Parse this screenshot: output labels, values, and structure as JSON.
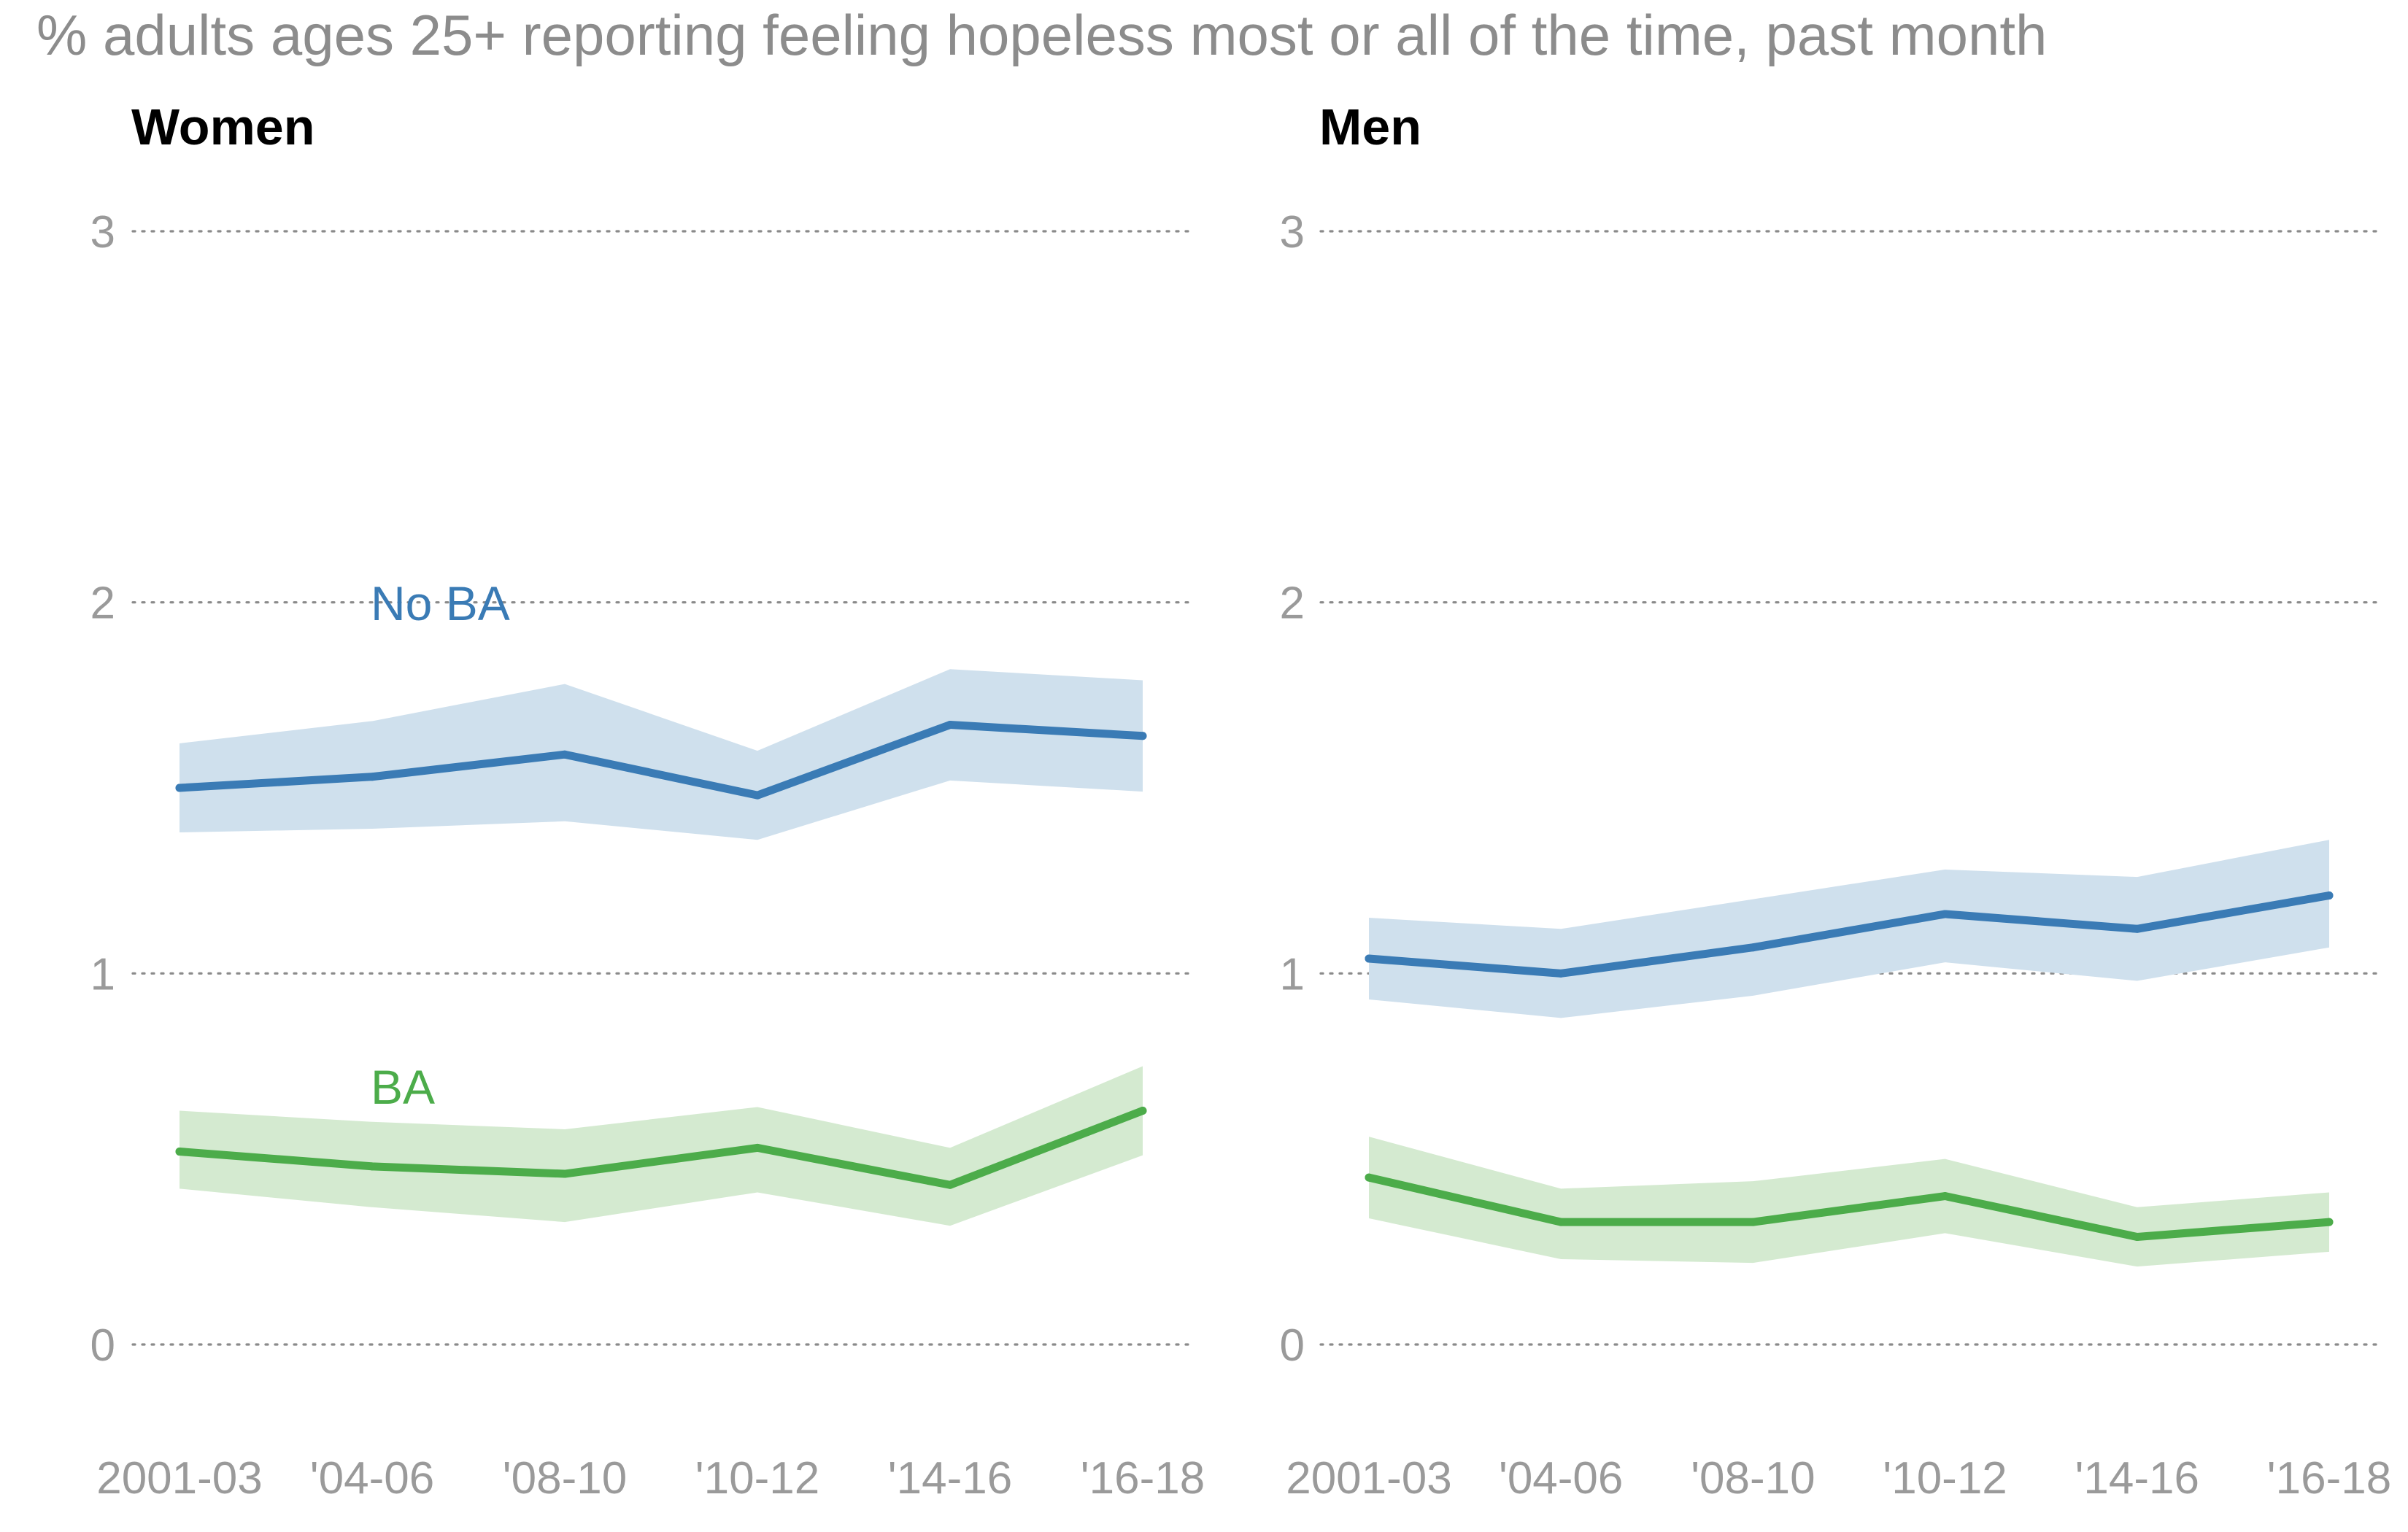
{
  "chart_data": {
    "type": "line",
    "title": "% adults ages 25+ reporting feeling hopeless most or all of the time, past month",
    "x": [
      "2001-03",
      "'04-06",
      "'08-10",
      "'10-12",
      "'14-16",
      "'16-18"
    ],
    "ylim": [
      0,
      3
    ],
    "yticks": [
      0,
      1,
      2,
      3
    ],
    "grid": true,
    "colors": {
      "no_ba_line": "#3a7bb5",
      "no_ba_band": "#cfe0ed",
      "ba_line": "#4cac4a",
      "ba_band": "#d4ead0"
    },
    "panels": [
      {
        "title": "Women",
        "series": [
          {
            "name": "No BA",
            "values": [
              1.5,
              1.53,
              1.59,
              1.48,
              1.67,
              1.64
            ],
            "lower": [
              1.38,
              1.39,
              1.41,
              1.36,
              1.52,
              1.49
            ],
            "upper": [
              1.62,
              1.68,
              1.78,
              1.6,
              1.82,
              1.79
            ]
          },
          {
            "name": "BA",
            "values": [
              0.52,
              0.48,
              0.46,
              0.53,
              0.43,
              0.63
            ],
            "lower": [
              0.42,
              0.37,
              0.33,
              0.41,
              0.32,
              0.51
            ],
            "upper": [
              0.63,
              0.6,
              0.58,
              0.64,
              0.53,
              0.75
            ]
          }
        ]
      },
      {
        "title": "Men",
        "series": [
          {
            "name": "No BA",
            "values": [
              1.04,
              1.0,
              1.07,
              1.16,
              1.12,
              1.21
            ],
            "lower": [
              0.93,
              0.88,
              0.94,
              1.03,
              0.98,
              1.07
            ],
            "upper": [
              1.15,
              1.12,
              1.2,
              1.28,
              1.26,
              1.36
            ]
          },
          {
            "name": "BA",
            "values": [
              0.45,
              0.33,
              0.33,
              0.4,
              0.29,
              0.33
            ],
            "lower": [
              0.34,
              0.23,
              0.22,
              0.3,
              0.21,
              0.25
            ],
            "upper": [
              0.56,
              0.42,
              0.44,
              0.5,
              0.37,
              0.41
            ]
          }
        ]
      }
    ]
  }
}
